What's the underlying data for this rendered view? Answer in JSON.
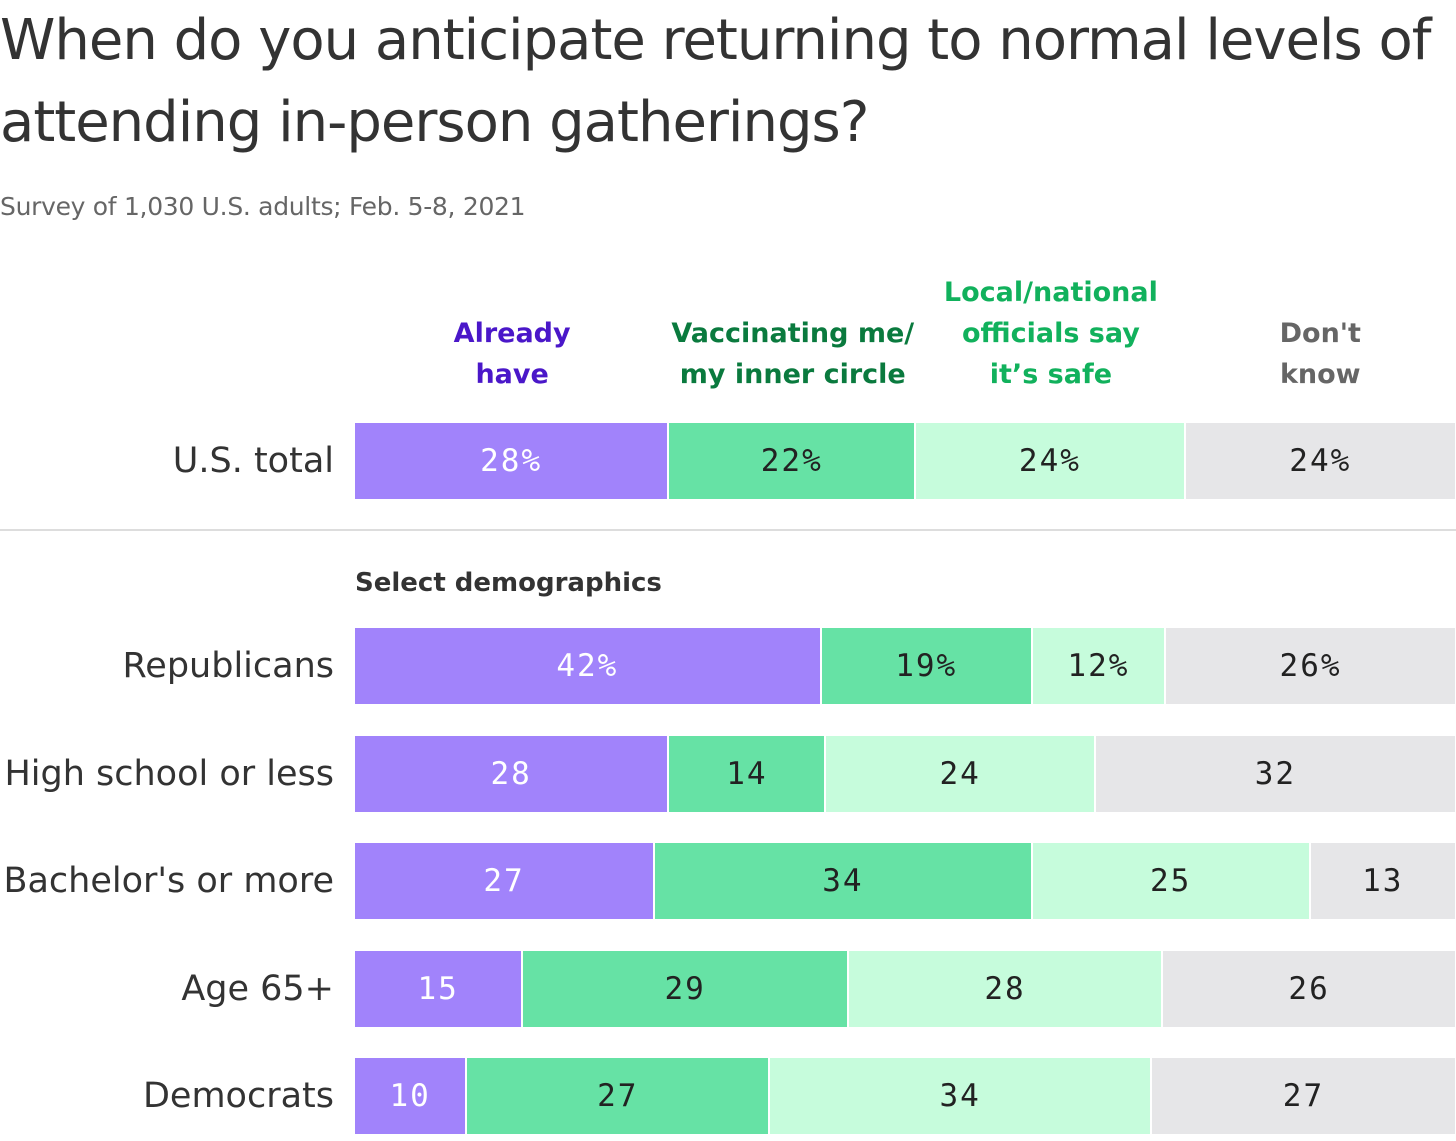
{
  "title": "When do you anticipate returning to normal levels of attending in-person gatherings?",
  "subtitle": "Survey of 1,030 U.S. adults; Feb. 5-8, 2021",
  "section_label": "Select demographics",
  "colors": {
    "already": "#a183fb",
    "vaccinating": "#66e2a5",
    "officials": "#c6fcdc",
    "dontknow": "#e6e6e8",
    "already_text": "#4a17c9",
    "vaccinating_text": "#0a7a3e",
    "officials_text": "#11b15c",
    "dontknow_text": "#666666"
  },
  "chart_data": {
    "type": "bar",
    "orientation": "horizontal",
    "stacked": true,
    "title": "When do you anticipate returning to normal levels of attending in-person gatherings?",
    "subtitle": "Survey of 1,030 U.S. adults; Feb. 5-8, 2021",
    "legend_position": "top",
    "series": [
      {
        "name": "Already have",
        "name_lines": [
          "Already",
          "have"
        ],
        "key": "already"
      },
      {
        "name": "Vaccinating me/ my inner circle",
        "name_lines": [
          "Vaccinating me/",
          "my inner circle"
        ],
        "key": "vaccinating"
      },
      {
        "name": "Local/national officials say it’s safe",
        "name_lines": [
          "Local/national",
          "officials say",
          "it’s safe"
        ],
        "key": "officials"
      },
      {
        "name": "Don't know",
        "name_lines": [
          "Don't",
          "know"
        ],
        "key": "dontknow"
      }
    ],
    "rows": [
      {
        "label": "U.S. total",
        "values": [
          28,
          22,
          24,
          24
        ],
        "value_labels": [
          "28%",
          "22%",
          "24%",
          "24%"
        ],
        "group": "total"
      },
      {
        "label": "Republicans",
        "values": [
          42,
          19,
          12,
          26
        ],
        "value_labels": [
          "42%",
          "19%",
          "12%",
          "26%"
        ],
        "group": "demographics"
      },
      {
        "label": "High school or less",
        "values": [
          28,
          14,
          24,
          32
        ],
        "value_labels": [
          "28",
          "14",
          "24",
          "32"
        ],
        "group": "demographics"
      },
      {
        "label": "Bachelor's or more",
        "values": [
          27,
          34,
          25,
          13
        ],
        "value_labels": [
          "27",
          "34",
          "25",
          "13"
        ],
        "group": "demographics"
      },
      {
        "label": "Age 65+",
        "values": [
          15,
          29,
          28,
          26
        ],
        "value_labels": [
          "15",
          "29",
          "28",
          "26"
        ],
        "group": "demographics"
      },
      {
        "label": "Democrats",
        "values": [
          10,
          27,
          34,
          27
        ],
        "value_labels": [
          "10",
          "27",
          "34",
          "27"
        ],
        "group": "demographics"
      }
    ]
  }
}
